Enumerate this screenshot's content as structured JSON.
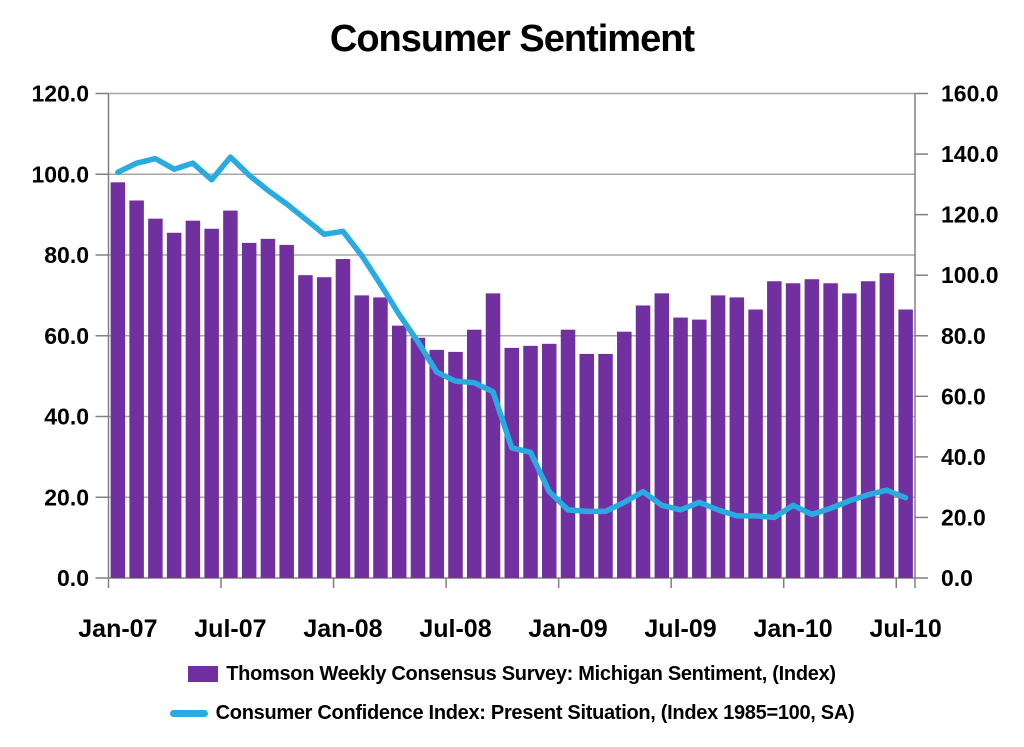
{
  "title": "Consumer Sentiment",
  "legend": [
    {
      "label": "Thomson Weekly Consensus Survey: Michigan Sentiment, (Index)",
      "type": "bar",
      "color": "#7030A0"
    },
    {
      "label": "Consumer Confidence Index: Present Situation, (Index 1985=100, SA)",
      "type": "line",
      "color": "#29ABE2"
    }
  ],
  "chart_data": {
    "type": "bar",
    "title": "Consumer Sentiment",
    "grid": true,
    "legend_position": "bottom",
    "categories": [
      "Jan-07",
      "Feb-07",
      "Mar-07",
      "Apr-07",
      "May-07",
      "Jun-07",
      "Jul-07",
      "Aug-07",
      "Sep-07",
      "Oct-07",
      "Nov-07",
      "Dec-07",
      "Jan-08",
      "Feb-08",
      "Mar-08",
      "Apr-08",
      "May-08",
      "Jun-08",
      "Jul-08",
      "Aug-08",
      "Sep-08",
      "Oct-08",
      "Nov-08",
      "Dec-08",
      "Jan-09",
      "Feb-09",
      "Mar-09",
      "Apr-09",
      "May-09",
      "Jun-09",
      "Jul-09",
      "Aug-09",
      "Sep-09",
      "Oct-09",
      "Nov-09",
      "Dec-09",
      "Jan-10",
      "Feb-10",
      "Mar-10",
      "Apr-10",
      "May-10",
      "Jun-10",
      "Jul-10"
    ],
    "x_label_every": 6,
    "x_tick_labels": [
      "Jan-07",
      "Jul-07",
      "Jan-08",
      "Jul-08",
      "Jan-09",
      "Jul-09",
      "Jan-10",
      "Jul-10"
    ],
    "series": [
      {
        "name": "Thomson Weekly Consensus Survey: Michigan Sentiment, (Index)",
        "type": "bar",
        "axis": "left",
        "color": "#7030A0",
        "values": [
          98,
          93.5,
          89,
          85.5,
          88.5,
          86.5,
          91,
          83,
          84,
          82.5,
          75,
          74.5,
          79,
          70,
          69.5,
          62.5,
          59.5,
          56.5,
          56,
          61.5,
          70.5,
          57,
          57.5,
          58,
          61.5,
          55.5,
          55.5,
          61,
          67.5,
          70.5,
          64.5,
          64,
          70,
          69.5,
          66.5,
          73.5,
          73,
          74,
          73,
          70.5,
          73.5,
          75.5,
          66.5
        ]
      },
      {
        "name": "Consumer Confidence Index: Present Situation, (Index 1985=100, SA)",
        "type": "line",
        "axis": "right",
        "color": "#29ABE2",
        "values": [
          134,
          137,
          138.5,
          135,
          137,
          131.5,
          139,
          133,
          128,
          123.5,
          118.5,
          113.5,
          114.5,
          106.5,
          97,
          87,
          78,
          68,
          65,
          64.5,
          61.5,
          43,
          41.5,
          28.5,
          22.5,
          22,
          22,
          25,
          28.5,
          24,
          22.5,
          25,
          22.5,
          20.5,
          20.5,
          20,
          24,
          21,
          23,
          25.5,
          27.5,
          29,
          26.5
        ]
      }
    ],
    "left_axis": {
      "min": 0,
      "max": 120,
      "step": 20,
      "tick_labels": [
        "0.0",
        "20.0",
        "40.0",
        "60.0",
        "80.0",
        "100.0",
        "120.0"
      ]
    },
    "right_axis": {
      "min": 0,
      "max": 160,
      "step": 20,
      "tick_labels": [
        "0.0",
        "20.0",
        "40.0",
        "60.0",
        "80.0",
        "100.0",
        "120.0",
        "140.0",
        "160.0"
      ]
    },
    "colors": {
      "gridline": "#A6A6A6",
      "axis": "#808080",
      "text": "#000000",
      "background": "#FFFFFF"
    }
  }
}
